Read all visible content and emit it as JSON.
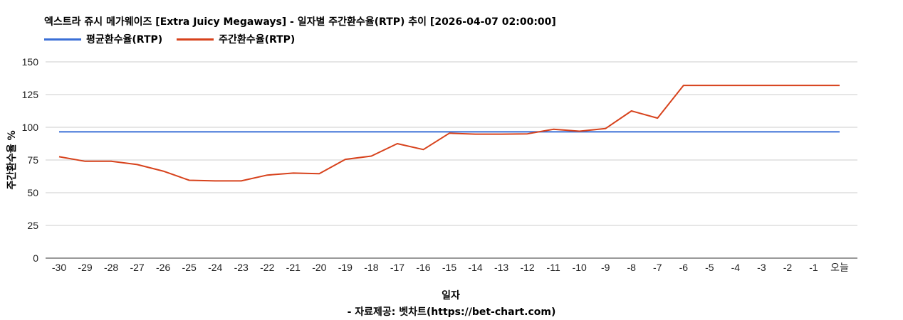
{
  "title": "엑스트라 쥬시 메가웨이즈 [Extra Juicy Megaways] - 일자별 주간환수율(RTP) 추이 [2026-04-07 02:00:00]",
  "source": "- 자료제공: 벳차트(https://bet-chart.com)",
  "chart_data": {
    "type": "line",
    "title": "엑스트라 쥬시 메가웨이즈 [Extra Juicy Megaways] - 일자별 주간환수율(RTP) 추이 [2026-04-07 02:00:00]",
    "xlabel": "일자",
    "ylabel": "주간환수율 %",
    "ylim": [
      0,
      150
    ],
    "yticks": [
      0,
      25,
      50,
      75,
      100,
      125,
      150
    ],
    "grid": true,
    "legend_position": "top-left",
    "categories": [
      "-30",
      "-29",
      "-28",
      "-27",
      "-26",
      "-25",
      "-24",
      "-23",
      "-22",
      "-21",
      "-20",
      "-19",
      "-18",
      "-17",
      "-16",
      "-15",
      "-14",
      "-13",
      "-12",
      "-11",
      "-10",
      "-9",
      "-8",
      "-7",
      "-6",
      "-5",
      "-4",
      "-3",
      "-2",
      "-1",
      "오늘"
    ],
    "series": [
      {
        "name": "평균환수율(RTP)",
        "color": "#3b6fd6",
        "values": [
          96.5,
          96.5,
          96.5,
          96.5,
          96.5,
          96.5,
          96.5,
          96.5,
          96.5,
          96.5,
          96.5,
          96.5,
          96.5,
          96.5,
          96.5,
          96.5,
          96.5,
          96.5,
          96.5,
          96.5,
          96.5,
          96.5,
          96.5,
          96.5,
          96.5,
          96.5,
          96.5,
          96.5,
          96.5,
          96.5,
          96.5
        ]
      },
      {
        "name": "주간환수율(RTP)",
        "color": "#d7421c",
        "values": [
          77.5,
          74,
          74,
          71.5,
          66.5,
          59.5,
          59,
          59,
          63.5,
          65,
          64.5,
          75.5,
          78,
          87.5,
          83,
          95.5,
          94.8,
          94.8,
          95,
          98.5,
          97,
          99,
          112.5,
          107,
          132,
          132,
          132,
          132,
          132,
          132,
          132
        ]
      }
    ]
  }
}
